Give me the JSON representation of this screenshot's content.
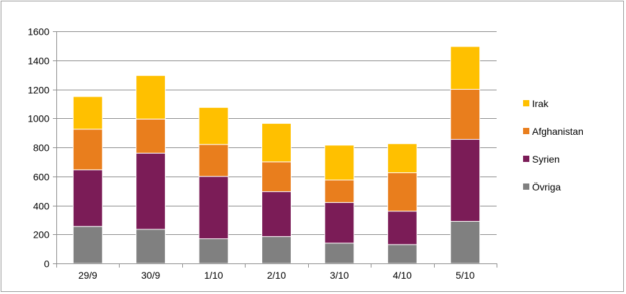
{
  "chart_data": {
    "type": "bar",
    "stacked": true,
    "title": "",
    "xlabel": "",
    "ylabel": "",
    "categories": [
      "29/9",
      "30/9",
      "1/10",
      "2/10",
      "3/10",
      "4/10",
      "5/10"
    ],
    "ylim": [
      0,
      1600
    ],
    "yticks": [
      0,
      200,
      400,
      600,
      800,
      1000,
      1200,
      1400,
      1600
    ],
    "grid": true,
    "legend_position": "right",
    "series": [
      {
        "name": "Övriga",
        "color": "#808080",
        "values": [
          255,
          235,
          170,
          185,
          140,
          130,
          290
        ]
      },
      {
        "name": "Syrien",
        "color": "#7b1c57",
        "values": [
          390,
          525,
          430,
          310,
          280,
          230,
          565
        ]
      },
      {
        "name": "Afghanistan",
        "color": "#e97e1d",
        "values": [
          280,
          235,
          220,
          205,
          155,
          265,
          345
        ]
      },
      {
        "name": "Irak",
        "color": "#ffc000",
        "values": [
          225,
          300,
          255,
          265,
          240,
          200,
          295
        ]
      }
    ]
  }
}
